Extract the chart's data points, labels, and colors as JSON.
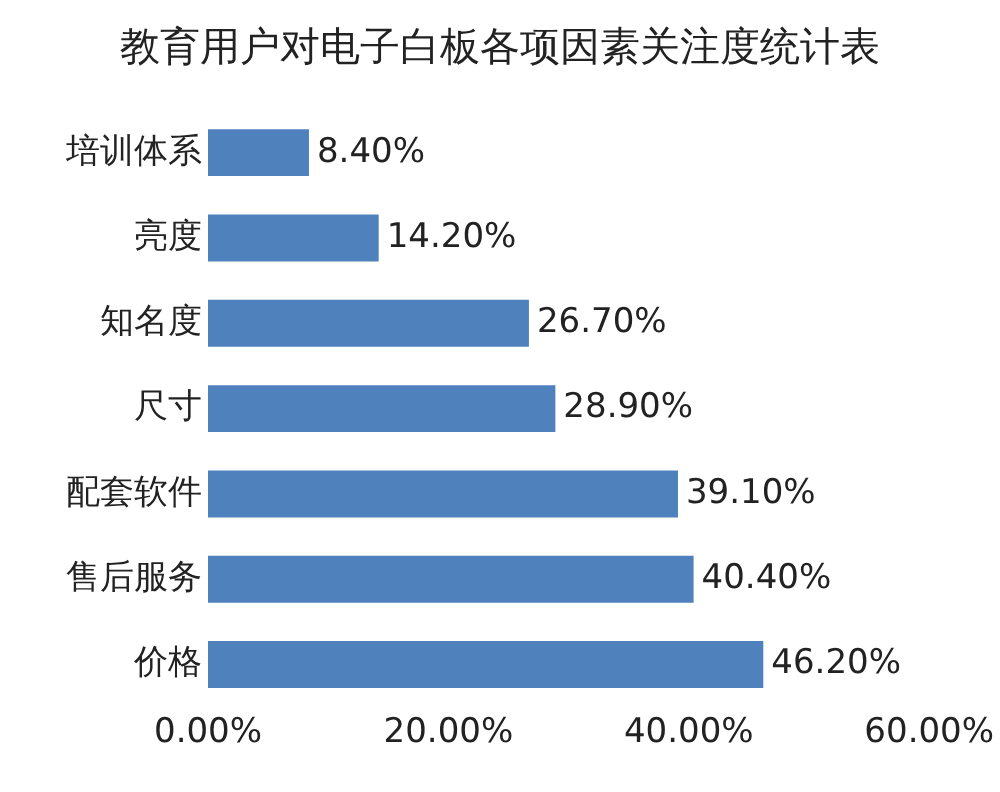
{
  "chart_data": {
    "type": "bar",
    "orientation": "horizontal",
    "title": "教育用户对电子白板各项因素关注度统计表",
    "categories": [
      "培训体系",
      "亮度",
      "知名度",
      "尺寸",
      "配套软件",
      "售后服务",
      "价格"
    ],
    "values": [
      8.4,
      14.2,
      26.7,
      28.9,
      39.1,
      40.4,
      46.2
    ],
    "value_labels": [
      "8.40%",
      "14.20%",
      "26.70%",
      "28.90%",
      "39.10%",
      "40.40%",
      "46.20%"
    ],
    "color": "#4f81bd",
    "xlim": [
      0,
      60
    ],
    "xticks": [
      {
        "value": 0,
        "label": "0.00%"
      },
      {
        "value": 20,
        "label": "20.00%"
      },
      {
        "value": 40,
        "label": "40.00%"
      },
      {
        "value": 60,
        "label": "60.00%"
      }
    ],
    "grid": false,
    "legend": false
  }
}
